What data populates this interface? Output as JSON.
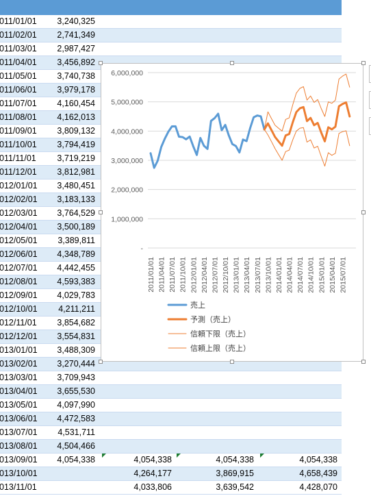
{
  "sheet": {
    "rows": [
      {
        "date": "011/01/01",
        "value": "3,240,325"
      },
      {
        "date": "011/02/01",
        "value": "2,741,349"
      },
      {
        "date": "011/03/01",
        "value": "2,987,427"
      },
      {
        "date": "011/04/01",
        "value": "3,456,892"
      },
      {
        "date": "011/05/01",
        "value": "3,740,738"
      },
      {
        "date": "011/06/01",
        "value": "3,979,178"
      },
      {
        "date": "011/07/01",
        "value": "4,160,454"
      },
      {
        "date": "011/08/01",
        "value": "4,162,013"
      },
      {
        "date": "011/09/01",
        "value": "3,809,132"
      },
      {
        "date": "011/10/01",
        "value": "3,794,419"
      },
      {
        "date": "011/11/01",
        "value": "3,719,219"
      },
      {
        "date": "011/12/01",
        "value": "3,812,981"
      },
      {
        "date": "012/01/01",
        "value": "3,480,451"
      },
      {
        "date": "012/02/01",
        "value": "3,183,133"
      },
      {
        "date": "012/03/01",
        "value": "3,764,529"
      },
      {
        "date": "012/04/01",
        "value": "3,500,189"
      },
      {
        "date": "012/05/01",
        "value": "3,389,811"
      },
      {
        "date": "012/06/01",
        "value": "4,348,789"
      },
      {
        "date": "012/07/01",
        "value": "4,442,455"
      },
      {
        "date": "012/08/01",
        "value": "4,593,383"
      },
      {
        "date": "012/09/01",
        "value": "4,029,783"
      },
      {
        "date": "012/10/01",
        "value": "4,211,211"
      },
      {
        "date": "012/11/01",
        "value": "3,854,682"
      },
      {
        "date": "012/12/01",
        "value": "3,554,831"
      },
      {
        "date": "013/01/01",
        "value": "3,488,309"
      },
      {
        "date": "013/02/01",
        "value": "3,270,444"
      },
      {
        "date": "013/03/01",
        "value": "3,709,943"
      },
      {
        "date": "013/04/01",
        "value": "3,655,530"
      },
      {
        "date": "013/05/01",
        "value": "4,097,990"
      },
      {
        "date": "013/06/01",
        "value": "4,472,583"
      },
      {
        "date": "013/07/01",
        "value": "4,531,711"
      },
      {
        "date": "013/08/01",
        "value": "4,504,466"
      },
      {
        "date": "013/09/01",
        "value": "4,054,338",
        "forecast": "4,054,338",
        "lower": "4,054,338",
        "upper": "4,054,338"
      },
      {
        "date": "013/10/01",
        "value": "",
        "forecast": "4,264,177",
        "lower": "3,869,915",
        "upper": "4,658,439"
      },
      {
        "date": "013/11/01",
        "value": "",
        "forecast": "4,033,806",
        "lower": "3,639,542",
        "upper": "4,428,070"
      }
    ]
  },
  "colors": {
    "header": "#5b9bd5",
    "band": "#ddebf7",
    "actual": "#5b9bd5",
    "forecast": "#ed7d31",
    "gridline": "#d9d9d9"
  },
  "chart_data": {
    "type": "line",
    "ylim": [
      0,
      6000000
    ],
    "yticks": [
      "6,000,000",
      "5,000,000",
      "4,000,000",
      "3,000,000",
      "2,000,000",
      "1,000,000",
      "-"
    ],
    "xticks": [
      "2011/01/01",
      "2011/04/01",
      "2011/07/01",
      "2011/10/01",
      "2012/01/01",
      "2012/04/01",
      "2012/07/01",
      "2012/10/01",
      "2013/01/01",
      "2013/04/01",
      "2013/07/01",
      "2013/10/01",
      "2014/01/01",
      "2014/04/01",
      "2014/07/01",
      "2014/10/01",
      "2015/01/01",
      "2015/04/01",
      "2015/07/01"
    ],
    "grid": true,
    "legend_position": "bottom",
    "series": [
      {
        "name": "売上",
        "start_month": "2011/01",
        "values": [
          3240325,
          2741349,
          2987427,
          3456892,
          3740738,
          3979178,
          4160454,
          4162013,
          3809132,
          3794419,
          3719219,
          3812981,
          3480451,
          3183133,
          3764529,
          3500189,
          3389811,
          4348789,
          4442455,
          4593383,
          4029783,
          4211211,
          3854682,
          3554831,
          3488309,
          3270444,
          3709943,
          3655530,
          4097990,
          4472583,
          4531711,
          4504466,
          4054338
        ]
      },
      {
        "name": "予測（売上）",
        "start_month": "2013/09",
        "values": [
          4054338,
          4264177,
          4033806,
          3800000,
          3650000,
          3500000,
          3850000,
          3900000,
          4300000,
          4650000,
          4780000,
          4820000,
          4340000,
          4450000,
          4200000,
          4280000,
          3950000,
          3650000,
          4130000,
          4060000,
          4150000,
          4850000,
          4930000,
          4980000,
          4500000
        ]
      },
      {
        "name": "信頼下限（売上）",
        "start_month": "2013/09",
        "values": [
          4054338,
          3869915,
          3639542,
          3400000,
          3200000,
          3000000,
          3300000,
          3350000,
          3700000,
          4000000,
          4100000,
          4120000,
          3620000,
          3700000,
          3420000,
          3480000,
          3130000,
          2800000,
          3260000,
          3170000,
          3240000,
          3920000,
          3980000,
          4010000,
          3500000
        ]
      },
      {
        "name": "信頼上限（売上）",
        "start_month": "2013/09",
        "values": [
          4054338,
          4658439,
          4428070,
          4200000,
          4100000,
          4000000,
          4400000,
          4450000,
          4900000,
          5300000,
          5460000,
          5520000,
          5060000,
          5200000,
          4980000,
          5080000,
          4770000,
          4500000,
          5000000,
          4950000,
          5060000,
          5780000,
          5880000,
          5950000,
          5500000
        ]
      }
    ]
  }
}
